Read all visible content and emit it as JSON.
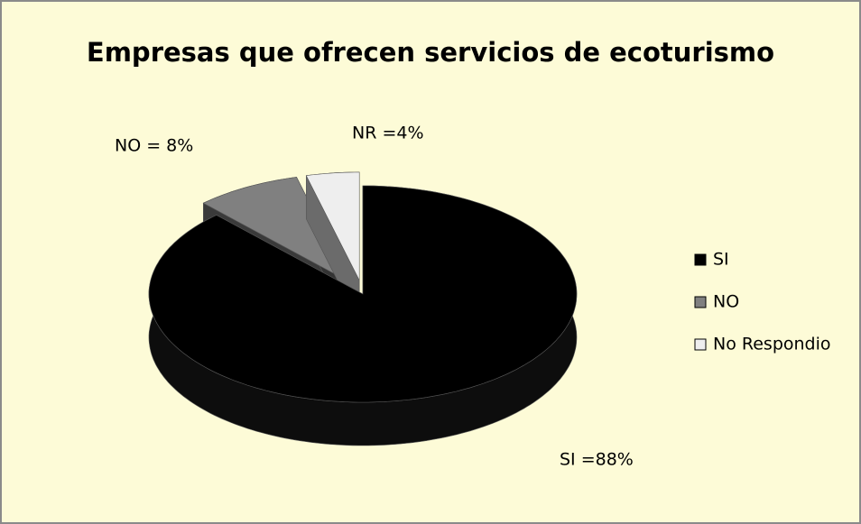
{
  "chart_data": {
    "type": "pie3d",
    "title": "Empresas que  ofrecen servicios de ecoturismo",
    "categories": [
      "SI",
      "NO",
      "No Respondio"
    ],
    "values": [
      88,
      8,
      4
    ],
    "value_labels": [
      "SI =88%",
      "NO = 8%",
      "NR =4%"
    ],
    "colors": [
      "#000000",
      "#808080",
      "#eeeeee"
    ],
    "legend": "right"
  }
}
